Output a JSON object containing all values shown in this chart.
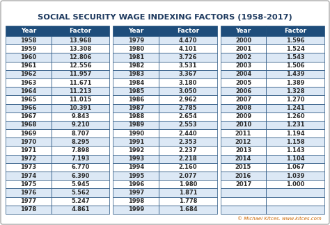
{
  "title": "SOCIAL SECURITY WAGE INDEXING FACTORS (1958-2017)",
  "header_bg": "#1e4d7b",
  "header_text": "#ffffff",
  "row_bg_odd": "#dce8f5",
  "row_bg_even": "#ffffff",
  "title_bg": "#ffffff",
  "title_color": "#1e3a5f",
  "outer_bg": "#ffffff",
  "border_color": "#1e4d7b",
  "sep_color": "#1e4d7b",
  "col1_data": [
    [
      1958,
      13.968
    ],
    [
      1959,
      13.308
    ],
    [
      1960,
      12.806
    ],
    [
      1961,
      12.556
    ],
    [
      1962,
      11.957
    ],
    [
      1963,
      11.671
    ],
    [
      1964,
      11.213
    ],
    [
      1965,
      11.015
    ],
    [
      1966,
      10.391
    ],
    [
      1967,
      9.843
    ],
    [
      1968,
      9.21
    ],
    [
      1969,
      8.707
    ],
    [
      1970,
      8.295
    ],
    [
      1971,
      7.898
    ],
    [
      1972,
      7.193
    ],
    [
      1973,
      6.77
    ],
    [
      1974,
      6.39
    ],
    [
      1975,
      5.945
    ],
    [
      1976,
      5.562
    ],
    [
      1977,
      5.247
    ],
    [
      1978,
      4.861
    ]
  ],
  "col2_data": [
    [
      1979,
      4.47
    ],
    [
      1980,
      4.101
    ],
    [
      1981,
      3.726
    ],
    [
      1982,
      3.531
    ],
    [
      1983,
      3.367
    ],
    [
      1984,
      3.18
    ],
    [
      1985,
      3.05
    ],
    [
      1986,
      2.962
    ],
    [
      1987,
      2.785
    ],
    [
      1988,
      2.654
    ],
    [
      1989,
      2.553
    ],
    [
      1990,
      2.44
    ],
    [
      1991,
      2.353
    ],
    [
      1992,
      2.237
    ],
    [
      1993,
      2.218
    ],
    [
      1994,
      2.16
    ],
    [
      1995,
      2.077
    ],
    [
      1996,
      1.98
    ],
    [
      1997,
      1.871
    ],
    [
      1998,
      1.778
    ],
    [
      1999,
      1.684
    ]
  ],
  "col3_data": [
    [
      2000,
      1.596
    ],
    [
      2001,
      1.524
    ],
    [
      2002,
      1.543
    ],
    [
      2003,
      1.506
    ],
    [
      2004,
      1.439
    ],
    [
      2005,
      1.389
    ],
    [
      2006,
      1.328
    ],
    [
      2007,
      1.27
    ],
    [
      2008,
      1.241
    ],
    [
      2009,
      1.26
    ],
    [
      2010,
      1.231
    ],
    [
      2011,
      1.194
    ],
    [
      2012,
      1.158
    ],
    [
      2013,
      1.143
    ],
    [
      2014,
      1.104
    ],
    [
      2015,
      1.067
    ],
    [
      2016,
      1.039
    ],
    [
      2017,
      1.0
    ]
  ],
  "footer_text": "© Michael Kitces. www.kitces.com",
  "footer_color": "#cc6600",
  "footer_link_color": "#1a6aaa"
}
